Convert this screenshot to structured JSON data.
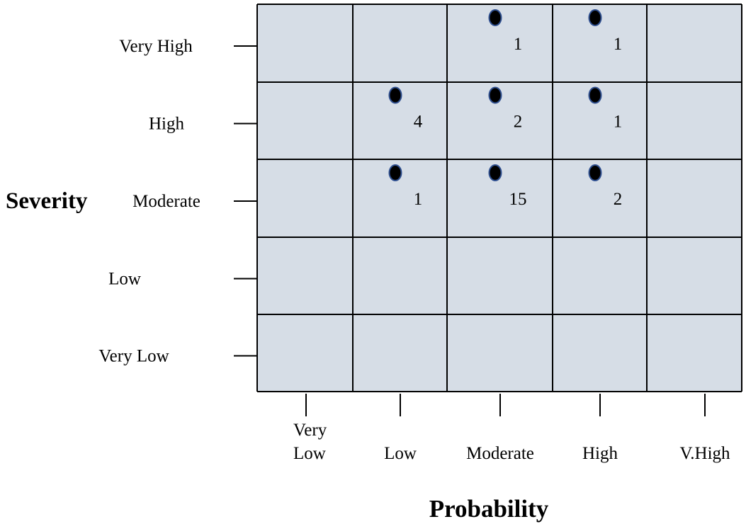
{
  "chart_data": {
    "type": "heatmap",
    "xlabel": "Probability",
    "ylabel": "Severity",
    "x_categories": [
      "Very Low",
      "Low",
      "Moderate",
      "High",
      "V.High"
    ],
    "y_categories": [
      "Very High",
      "High",
      "Moderate",
      "Low",
      "Very Low"
    ],
    "cells": [
      {
        "x": "Moderate",
        "y": "Very High",
        "count": "1"
      },
      {
        "x": "High",
        "y": "Very High",
        "count": "1"
      },
      {
        "x": "Low",
        "y": "High",
        "count": "4"
      },
      {
        "x": "Moderate",
        "y": "High",
        "count": "2"
      },
      {
        "x": "High",
        "y": "High",
        "count": "1"
      },
      {
        "x": "Low",
        "y": "Moderate",
        "count": "1"
      },
      {
        "x": "Moderate",
        "y": "Moderate",
        "count": "15"
      },
      {
        "x": "High",
        "y": "Moderate",
        "count": "2"
      }
    ],
    "colors": {
      "cell_fill": "#d6dde6",
      "grid": "#000000",
      "marker": "#000000",
      "marker_outline": "#2f4f8f"
    },
    "grid": true,
    "legend": "none"
  }
}
